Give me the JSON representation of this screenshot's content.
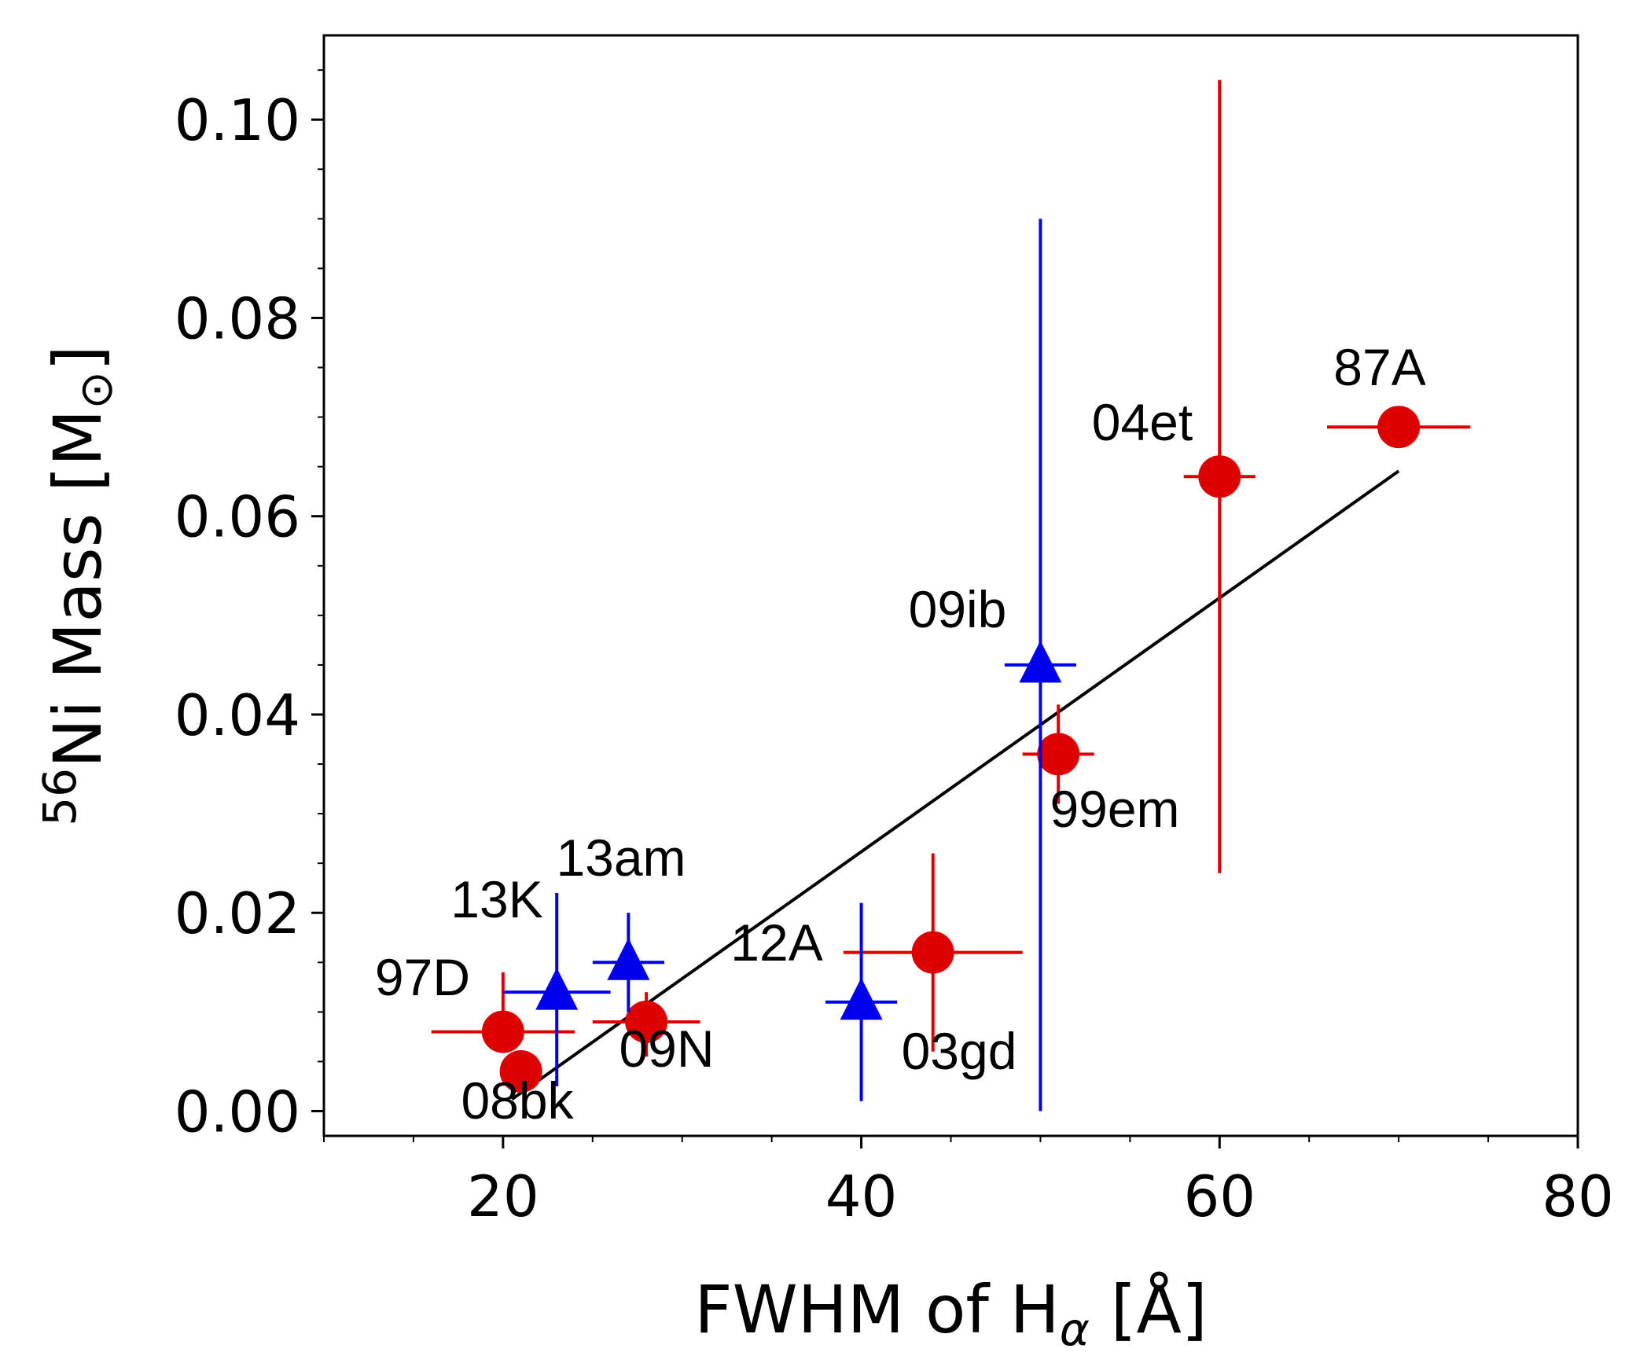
{
  "chart_data": {
    "type": "scatter",
    "xlabel": {
      "text": "FWHM of H",
      "sub": "α",
      "unit": " [Å]"
    },
    "ylabel": {
      "sup": "56",
      "text": "Ni Mass [M",
      "sun": "⊙",
      "close": "]"
    },
    "xlim": [
      10,
      80
    ],
    "ylim": [
      -0.0025,
      0.1085
    ],
    "xticks": [
      20,
      40,
      60,
      80
    ],
    "xtick_labels": [
      "20",
      "40",
      "60",
      "80"
    ],
    "yticks": [
      0.0,
      0.02,
      0.04,
      0.06,
      0.08,
      0.1
    ],
    "ytick_labels": [
      "0.00",
      "0.02",
      "0.04",
      "0.06",
      "0.08",
      "0.10"
    ],
    "colors": {
      "circle": "#dd0000",
      "triangle": "#0000ee",
      "fit": "#000000"
    },
    "series": [
      {
        "name": "circles",
        "marker": "circle",
        "points": [
          {
            "label": "97D",
            "x": 20,
            "y": 0.008,
            "xerr": 4,
            "yerr": [
              0.002,
              0.006
            ]
          },
          {
            "label": "08bk",
            "x": 21,
            "y": 0.004,
            "xerr": 1,
            "yerr": [
              0.002,
              0.001
            ]
          },
          {
            "label": "09N",
            "x": 28,
            "y": 0.009,
            "xerr": 3,
            "yerr": [
              0.0035,
              0.003
            ]
          },
          {
            "label": "03gd",
            "x": 44,
            "y": 0.016,
            "xerr": 5,
            "yerr": [
              0.01,
              0.01
            ]
          },
          {
            "label": "99em",
            "x": 51,
            "y": 0.036,
            "xerr": 2,
            "yerr": [
              0.005,
              0.005
            ]
          },
          {
            "label": "04et",
            "x": 60,
            "y": 0.064,
            "xerr": 2,
            "yerr": [
              0.04,
              0.04
            ]
          },
          {
            "label": "87A",
            "x": 70,
            "y": 0.069,
            "xerr": 4,
            "yerr": [
              0.0,
              0.0
            ]
          }
        ]
      },
      {
        "name": "triangles",
        "marker": "triangle",
        "points": [
          {
            "label": "13K",
            "x": 23,
            "y": 0.012,
            "xerr": 3,
            "yerr": [
              0.0095,
              0.01
            ]
          },
          {
            "label": "13am",
            "x": 27,
            "y": 0.015,
            "xerr": 2,
            "yerr": [
              0.005,
              0.005
            ]
          },
          {
            "label": "12A",
            "x": 40,
            "y": 0.011,
            "xerr": 2,
            "yerr": [
              0.01,
              0.01
            ]
          },
          {
            "label": "09ib",
            "x": 50,
            "y": 0.045,
            "xerr": 2,
            "yerr": [
              0.045,
              0.045
            ]
          }
        ]
      }
    ],
    "fit_line": {
      "x": [
        20.5,
        70
      ],
      "y": 0.0012,
      "slope": 0.00128
    }
  }
}
